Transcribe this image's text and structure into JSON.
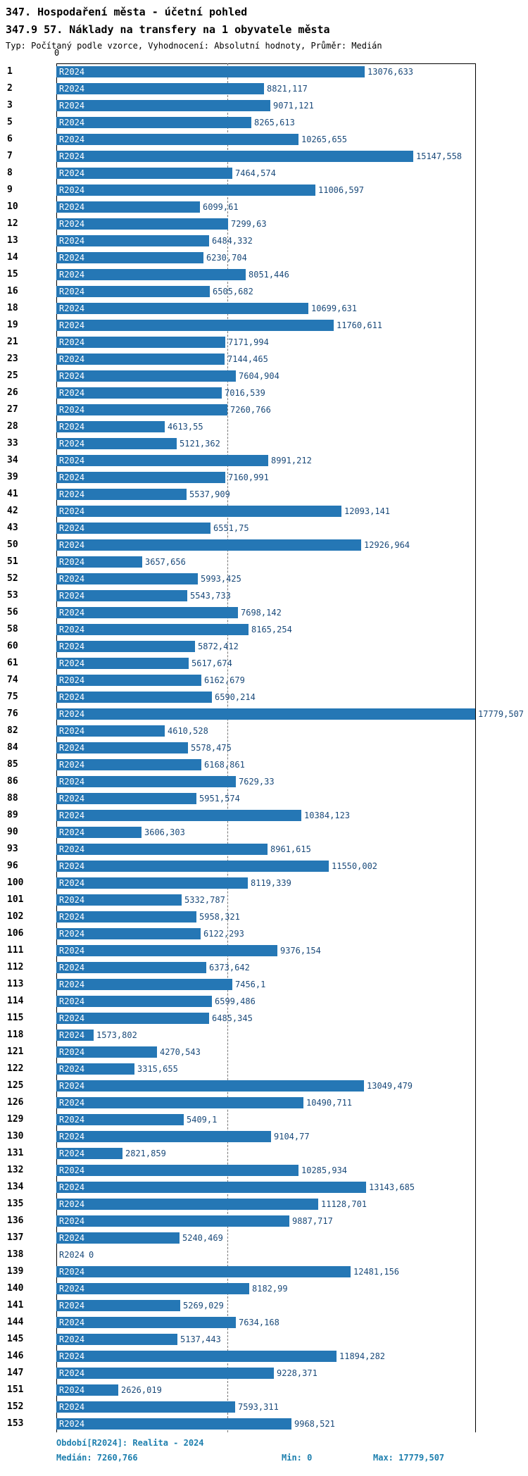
{
  "header": {
    "title": "347. Hospodaření města - účetní pohled",
    "subtitle": "347.9 57. Náklady na transfery na 1 obyvatele města",
    "meta": "Typ: Počítaný podle vzorce, Vyhodnocení: Absolutní hodnoty, Průměr: Medián"
  },
  "colors": {
    "bar": "#2577b5",
    "bar_label": "#ffffff",
    "value_label": "#1a4a7a",
    "footer_text": "#1d7fae",
    "axis": "#000000",
    "median_line": "#777777"
  },
  "chart_data": {
    "type": "bar",
    "orientation": "horizontal",
    "title": "347.9 57. Náklady na transfery na 1 obyvatele města",
    "series_label": "R2024",
    "axis_zero_label": "0",
    "x_min": 0,
    "x_max": 17779.507,
    "median_value": 7260.766,
    "grid": "median-dashed-line",
    "rows": [
      {
        "num": "1",
        "value": 13076.633,
        "display": "13076,633"
      },
      {
        "num": "2",
        "value": 8821.117,
        "display": "8821,117"
      },
      {
        "num": "3",
        "value": 9071.121,
        "display": "9071,121"
      },
      {
        "num": "5",
        "value": 8265.613,
        "display": "8265,613"
      },
      {
        "num": "6",
        "value": 10265.655,
        "display": "10265,655"
      },
      {
        "num": "7",
        "value": 15147.558,
        "display": "15147,558"
      },
      {
        "num": "8",
        "value": 7464.574,
        "display": "7464,574"
      },
      {
        "num": "9",
        "value": 11006.597,
        "display": "11006,597"
      },
      {
        "num": "10",
        "value": 6099.61,
        "display": "6099,61"
      },
      {
        "num": "12",
        "value": 7299.63,
        "display": "7299,63"
      },
      {
        "num": "13",
        "value": 6484.332,
        "display": "6484,332"
      },
      {
        "num": "14",
        "value": 6230.704,
        "display": "6230,704"
      },
      {
        "num": "15",
        "value": 8051.446,
        "display": "8051,446"
      },
      {
        "num": "16",
        "value": 6505.682,
        "display": "6505,682"
      },
      {
        "num": "18",
        "value": 10699.631,
        "display": "10699,631"
      },
      {
        "num": "19",
        "value": 11760.611,
        "display": "11760,611"
      },
      {
        "num": "21",
        "value": 7171.994,
        "display": "7171,994"
      },
      {
        "num": "23",
        "value": 7144.465,
        "display": "7144,465"
      },
      {
        "num": "25",
        "value": 7604.904,
        "display": "7604,904"
      },
      {
        "num": "26",
        "value": 7016.539,
        "display": "7016,539"
      },
      {
        "num": "27",
        "value": 7260.766,
        "display": "7260,766"
      },
      {
        "num": "28",
        "value": 4613.55,
        "display": "4613,55"
      },
      {
        "num": "33",
        "value": 5121.362,
        "display": "5121,362"
      },
      {
        "num": "34",
        "value": 8991.212,
        "display": "8991,212"
      },
      {
        "num": "39",
        "value": 7160.991,
        "display": "7160,991"
      },
      {
        "num": "41",
        "value": 5537.909,
        "display": "5537,909"
      },
      {
        "num": "42",
        "value": 12093.141,
        "display": "12093,141"
      },
      {
        "num": "43",
        "value": 6551.75,
        "display": "6551,75"
      },
      {
        "num": "50",
        "value": 12926.964,
        "display": "12926,964"
      },
      {
        "num": "51",
        "value": 3657.656,
        "display": "3657,656"
      },
      {
        "num": "52",
        "value": 5993.425,
        "display": "5993,425"
      },
      {
        "num": "53",
        "value": 5543.733,
        "display": "5543,733"
      },
      {
        "num": "56",
        "value": 7698.142,
        "display": "7698,142"
      },
      {
        "num": "58",
        "value": 8165.254,
        "display": "8165,254"
      },
      {
        "num": "60",
        "value": 5872.412,
        "display": "5872,412"
      },
      {
        "num": "61",
        "value": 5617.674,
        "display": "5617,674"
      },
      {
        "num": "74",
        "value": 6162.679,
        "display": "6162,679"
      },
      {
        "num": "75",
        "value": 6590.214,
        "display": "6590,214"
      },
      {
        "num": "76",
        "value": 17779.507,
        "display": "17779,507"
      },
      {
        "num": "82",
        "value": 4610.528,
        "display": "4610,528"
      },
      {
        "num": "84",
        "value": 5578.475,
        "display": "5578,475"
      },
      {
        "num": "85",
        "value": 6168.861,
        "display": "6168,861"
      },
      {
        "num": "86",
        "value": 7629.33,
        "display": "7629,33"
      },
      {
        "num": "88",
        "value": 5951.574,
        "display": "5951,574"
      },
      {
        "num": "89",
        "value": 10384.123,
        "display": "10384,123"
      },
      {
        "num": "90",
        "value": 3606.303,
        "display": "3606,303"
      },
      {
        "num": "93",
        "value": 8961.615,
        "display": "8961,615"
      },
      {
        "num": "96",
        "value": 11550.002,
        "display": "11550,002"
      },
      {
        "num": "100",
        "value": 8119.339,
        "display": "8119,339"
      },
      {
        "num": "101",
        "value": 5332.787,
        "display": "5332,787"
      },
      {
        "num": "102",
        "value": 5958.321,
        "display": "5958,321"
      },
      {
        "num": "106",
        "value": 6122.293,
        "display": "6122,293"
      },
      {
        "num": "111",
        "value": 9376.154,
        "display": "9376,154"
      },
      {
        "num": "112",
        "value": 6373.642,
        "display": "6373,642"
      },
      {
        "num": "113",
        "value": 7456.1,
        "display": "7456,1"
      },
      {
        "num": "114",
        "value": 6599.486,
        "display": "6599,486"
      },
      {
        "num": "115",
        "value": 6485.345,
        "display": "6485,345"
      },
      {
        "num": "118",
        "value": 1573.802,
        "display": "1573,802"
      },
      {
        "num": "121",
        "value": 4270.543,
        "display": "4270,543"
      },
      {
        "num": "122",
        "value": 3315.655,
        "display": "3315,655"
      },
      {
        "num": "125",
        "value": 13049.479,
        "display": "13049,479"
      },
      {
        "num": "126",
        "value": 10490.711,
        "display": "10490,711"
      },
      {
        "num": "129",
        "value": 5409.1,
        "display": "5409,1"
      },
      {
        "num": "130",
        "value": 9104.77,
        "display": "9104,77"
      },
      {
        "num": "131",
        "value": 2821.859,
        "display": "2821,859"
      },
      {
        "num": "132",
        "value": 10285.934,
        "display": "10285,934"
      },
      {
        "num": "134",
        "value": 13143.685,
        "display": "13143,685"
      },
      {
        "num": "135",
        "value": 11128.701,
        "display": "11128,701"
      },
      {
        "num": "136",
        "value": 9887.717,
        "display": "9887,717"
      },
      {
        "num": "137",
        "value": 5240.469,
        "display": "5240,469"
      },
      {
        "num": "138",
        "value": 0,
        "display": "0"
      },
      {
        "num": "139",
        "value": 12481.156,
        "display": "12481,156"
      },
      {
        "num": "140",
        "value": 8182.99,
        "display": "8182,99"
      },
      {
        "num": "141",
        "value": 5269.029,
        "display": "5269,029"
      },
      {
        "num": "144",
        "value": 7634.168,
        "display": "7634,168"
      },
      {
        "num": "145",
        "value": 5137.443,
        "display": "5137,443"
      },
      {
        "num": "146",
        "value": 11894.282,
        "display": "11894,282"
      },
      {
        "num": "147",
        "value": 9228.371,
        "display": "9228,371"
      },
      {
        "num": "151",
        "value": 2626.019,
        "display": "2626,019"
      },
      {
        "num": "152",
        "value": 7593.311,
        "display": "7593,311"
      },
      {
        "num": "153",
        "value": 9968.521,
        "display": "9968,521"
      }
    ]
  },
  "footer": {
    "period": "Období[R2024]: Realita - 2024",
    "median": "Medián: 7260,766",
    "min": "Min: 0",
    "max": "Max: 17779,507"
  }
}
